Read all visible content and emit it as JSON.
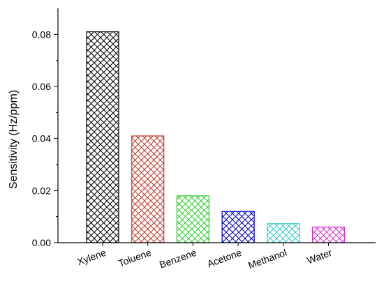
{
  "chart_data": {
    "type": "bar",
    "title": "",
    "xlabel": "",
    "ylabel": "Sensitivity (Hz/ppm)",
    "categories": [
      "Xylene",
      "Toluene",
      "Benzene",
      "Acetone",
      "Methanol",
      "Water"
    ],
    "values": [
      0.081,
      0.041,
      0.018,
      0.012,
      0.0073,
      0.006
    ],
    "colors": [
      "#000000",
      "#c0392b",
      "#33cc33",
      "#0000cc",
      "#33cccc",
      "#cc33cc"
    ],
    "ylim": [
      0,
      0.09
    ],
    "yticks": [
      "0.00",
      "0.02",
      "0.04",
      "0.06",
      "0.08"
    ],
    "pattern": "crosshatch",
    "grid": false,
    "legend": "none"
  }
}
